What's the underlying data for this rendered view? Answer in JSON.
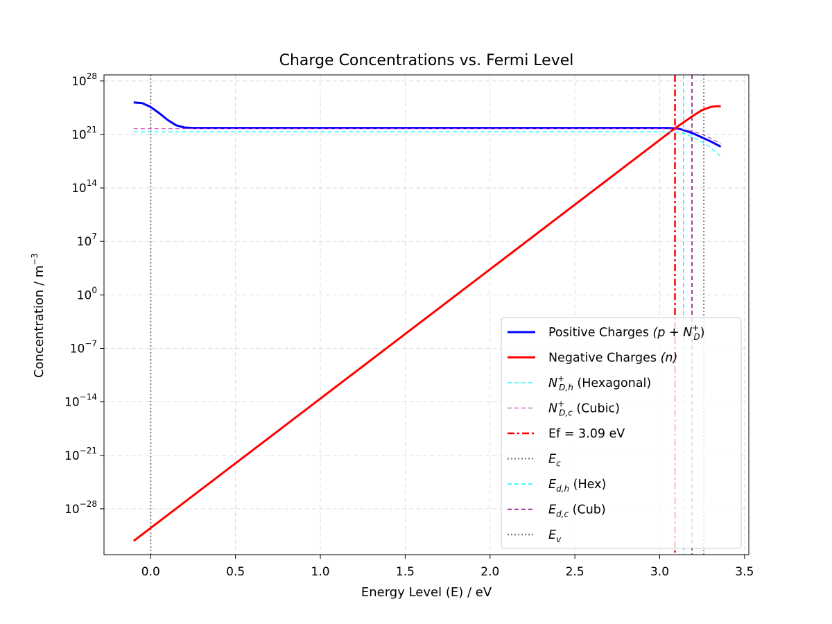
{
  "chart_data": {
    "type": "line",
    "title": "Charge Concentrations vs. Fermi Level",
    "xlabel": "Energy Level (E) / eV",
    "ylabel": "Concentration / m",
    "ylabel_exponent": "−3",
    "yscale": "log",
    "xlim": [
      -0.275,
      3.525
    ],
    "ylim_log10": [
      -34,
      28.8
    ],
    "x_ticks": [
      0.0,
      0.5,
      1.0,
      1.5,
      2.0,
      2.5,
      3.0,
      3.5
    ],
    "x_tick_labels": [
      "0.0",
      "0.5",
      "1.0",
      "1.5",
      "2.0",
      "2.5",
      "3.0",
      "3.5"
    ],
    "y_ticks_log10": [
      28,
      21,
      14,
      7,
      0,
      -7,
      -14,
      -21,
      -28
    ],
    "y_tick_labels": [
      {
        "base": "10",
        "exp": "28"
      },
      {
        "base": "10",
        "exp": "21"
      },
      {
        "base": "10",
        "exp": "14"
      },
      {
        "base": "10",
        "exp": "7"
      },
      {
        "base": "10",
        "exp": "0"
      },
      {
        "base": "10",
        "exp": "−7"
      },
      {
        "base": "10",
        "exp": "−14"
      },
      {
        "base": "10",
        "exp": "−21"
      },
      {
        "base": "10",
        "exp": "−28"
      }
    ],
    "grid": true,
    "legend_position": "lower-right",
    "series": [
      {
        "name": "Positive Charges",
        "legend_math": "(p + N",
        "legend_sub": "D",
        "legend_sup": "+",
        "legend_tail": ")",
        "color": "#0000ff",
        "style": "solid",
        "x": [
          -0.1,
          -0.05,
          0.0,
          0.05,
          0.1,
          0.15,
          0.2,
          0.25,
          0.3,
          0.5,
          1.0,
          1.5,
          2.0,
          2.5,
          2.8,
          3.0,
          3.05,
          3.09,
          3.12,
          3.15,
          3.2,
          3.25,
          3.3,
          3.36
        ],
        "y_log10": [
          25.2,
          25.1,
          24.6,
          23.8,
          22.9,
          22.2,
          21.9,
          21.85,
          21.85,
          21.85,
          21.85,
          21.85,
          21.85,
          21.85,
          21.85,
          21.85,
          21.85,
          21.8,
          21.7,
          21.5,
          21.1,
          20.6,
          20.1,
          19.4
        ]
      },
      {
        "name": "Negative Charges",
        "legend_math": "(n)",
        "color": "#ff0000",
        "style": "solid",
        "x": [
          -0.1,
          3.09,
          3.2,
          3.25,
          3.3,
          3.33,
          3.36
        ],
        "y_log10": [
          -32.2,
          21.8,
          23.5,
          24.2,
          24.6,
          24.7,
          24.7
        ]
      },
      {
        "name": "(Hexagonal)",
        "legend_math": "N",
        "legend_sub": "D,h",
        "legend_sup": "+",
        "color": "#00ffff",
        "style": "dashed-thin",
        "x": [
          -0.1,
          3.0,
          3.1,
          3.15,
          3.2,
          3.25,
          3.3,
          3.36
        ],
        "y_log10": [
          21.35,
          21.35,
          21.3,
          21.1,
          20.6,
          20.0,
          19.3,
          18.1
        ]
      },
      {
        "name": "(Cubic)",
        "legend_math": "N",
        "legend_sub": "D,c",
        "legend_sup": "+",
        "color": "#bf40bf",
        "style": "dashed-thin",
        "x": [
          -0.1,
          3.0,
          3.1,
          3.15,
          3.2,
          3.25,
          3.3,
          3.36
        ],
        "y_log10": [
          21.75,
          21.75,
          21.7,
          21.6,
          21.4,
          21.0,
          20.5,
          19.8
        ]
      }
    ],
    "vlines": [
      {
        "x": 3.09,
        "label": "Ef = 3.09 eV",
        "color": "#ff0000",
        "style": "dashdot"
      },
      {
        "x": 0.0,
        "label": "E",
        "label_sub": "c",
        "color": "#808080",
        "style": "dotted"
      },
      {
        "x": 3.14,
        "label": "(Hex)",
        "label_math": "E",
        "label_sub": "d,h",
        "color": "#00ffff",
        "style": "dashed"
      },
      {
        "x": 3.19,
        "label": "(Cub)",
        "label_math": "E",
        "label_sub": "d,c",
        "color": "#800080",
        "style": "dashed"
      },
      {
        "x": 3.26,
        "label": "E",
        "label_sub": "v",
        "color": "#808080",
        "style": "dotted"
      }
    ]
  }
}
